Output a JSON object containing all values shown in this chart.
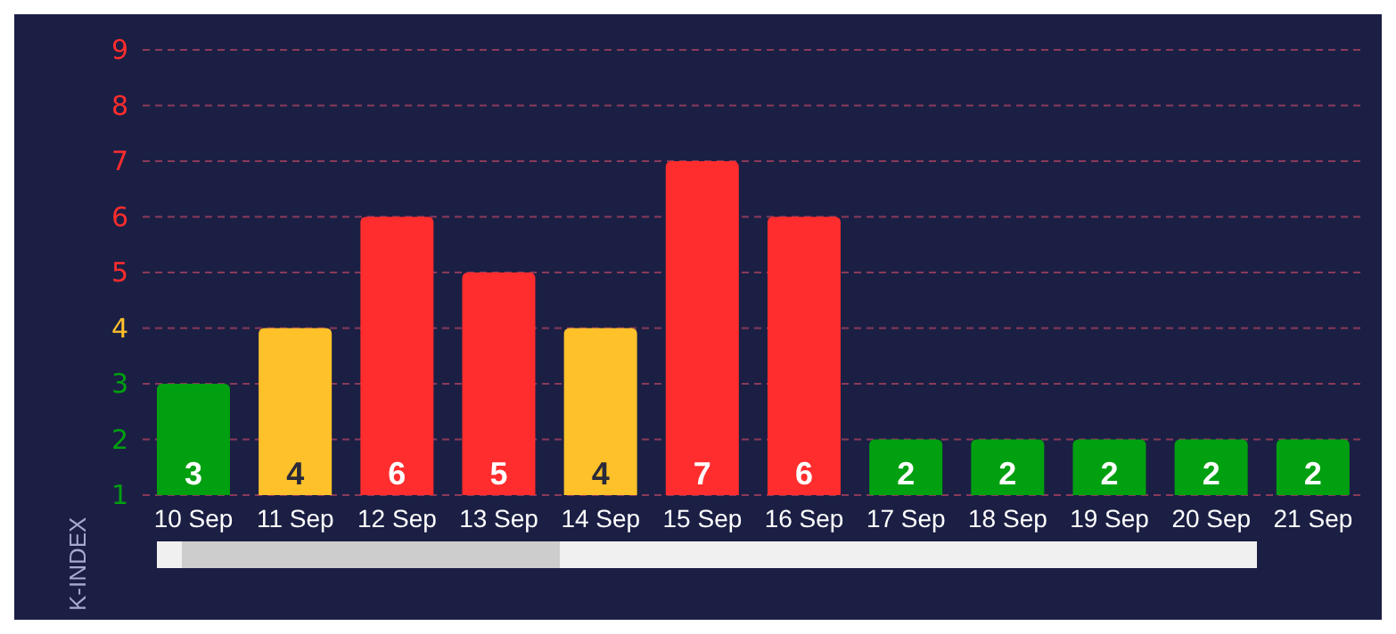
{
  "chart_data": {
    "type": "bar",
    "ylabel": "K-INDEX",
    "categories": [
      "10 Sep",
      "11 Sep",
      "12 Sep",
      "13 Sep",
      "14 Sep",
      "15 Sep",
      "16 Sep",
      "17 Sep",
      "18 Sep",
      "19 Sep",
      "20 Sep",
      "21 Sep"
    ],
    "values": [
      3,
      4,
      6,
      5,
      4,
      7,
      6,
      2,
      2,
      2,
      2,
      2
    ],
    "colors": [
      "#00a010",
      "#ffc12a",
      "#ff2d2d",
      "#ff2d2d",
      "#ffc12a",
      "#ff2d2d",
      "#ff2d2d",
      "#00a010",
      "#00a010",
      "#00a010",
      "#00a010",
      "#00a010"
    ],
    "ylim": [
      1,
      9
    ],
    "yticks": [
      1,
      2,
      3,
      4,
      5,
      6,
      7,
      8,
      9
    ],
    "grid": "y",
    "data_labels": true
  }
}
